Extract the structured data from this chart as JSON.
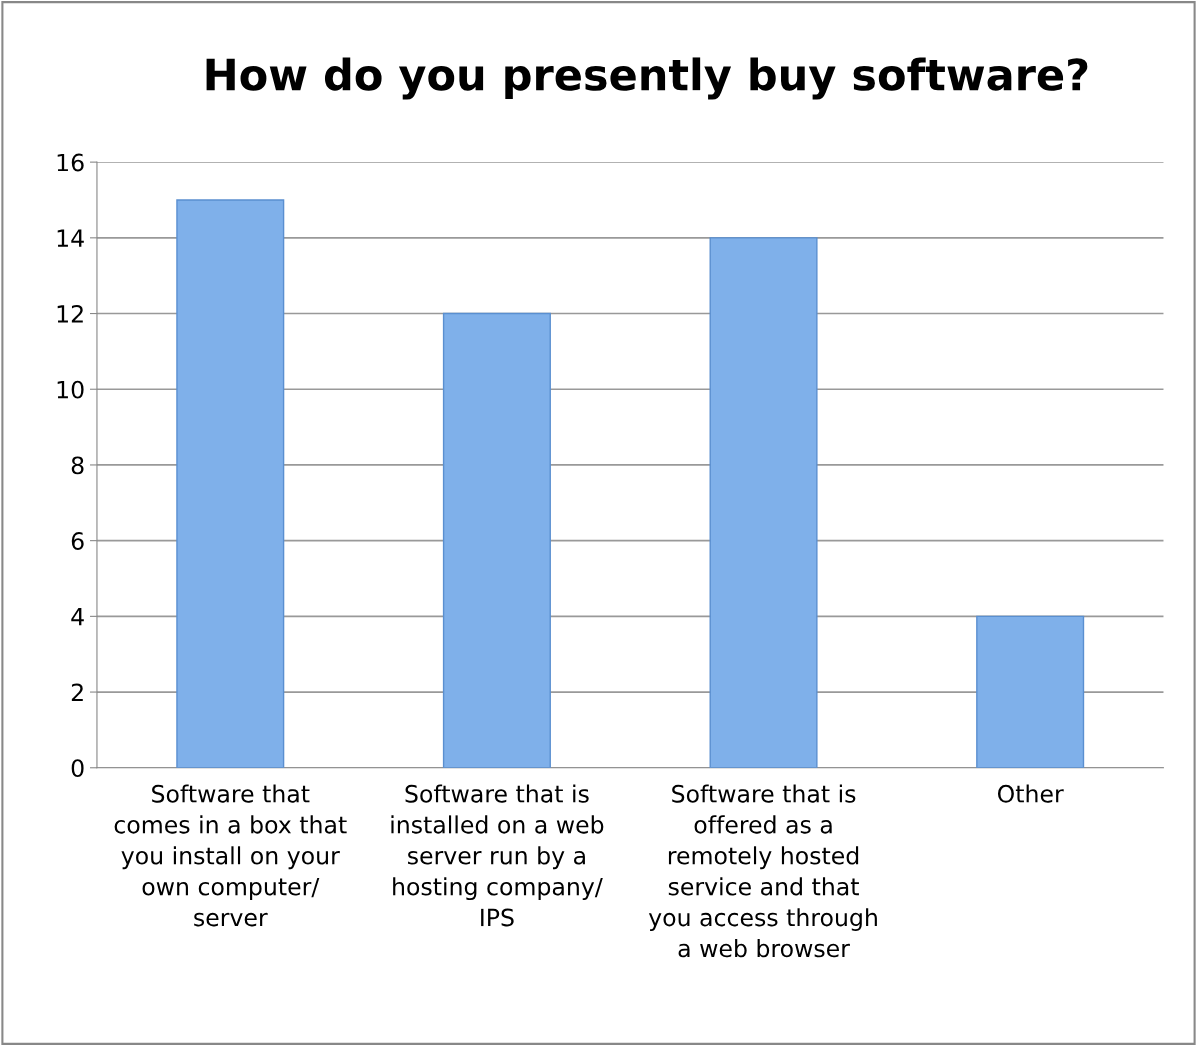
{
  "chart_data": {
    "type": "bar",
    "title": "How do you presently buy software?",
    "categories": [
      "Software that\ncomes in a box that\nyou install on your\nown computer/\nserver",
      "Software that is\ninstalled on a web\nserver run by a\nhosting company/\nIPS",
      "Software that is\noffered as a\nremotely hosted\nservice and that\nyou access through\na web browser",
      "Other"
    ],
    "values": [
      15,
      12,
      14,
      4
    ],
    "color": "#7fb0ea",
    "ylim": [
      0,
      16
    ],
    "yticks": [
      0,
      2,
      4,
      6,
      8,
      10,
      12,
      14,
      16
    ],
    "grid": "y",
    "legend": false
  }
}
